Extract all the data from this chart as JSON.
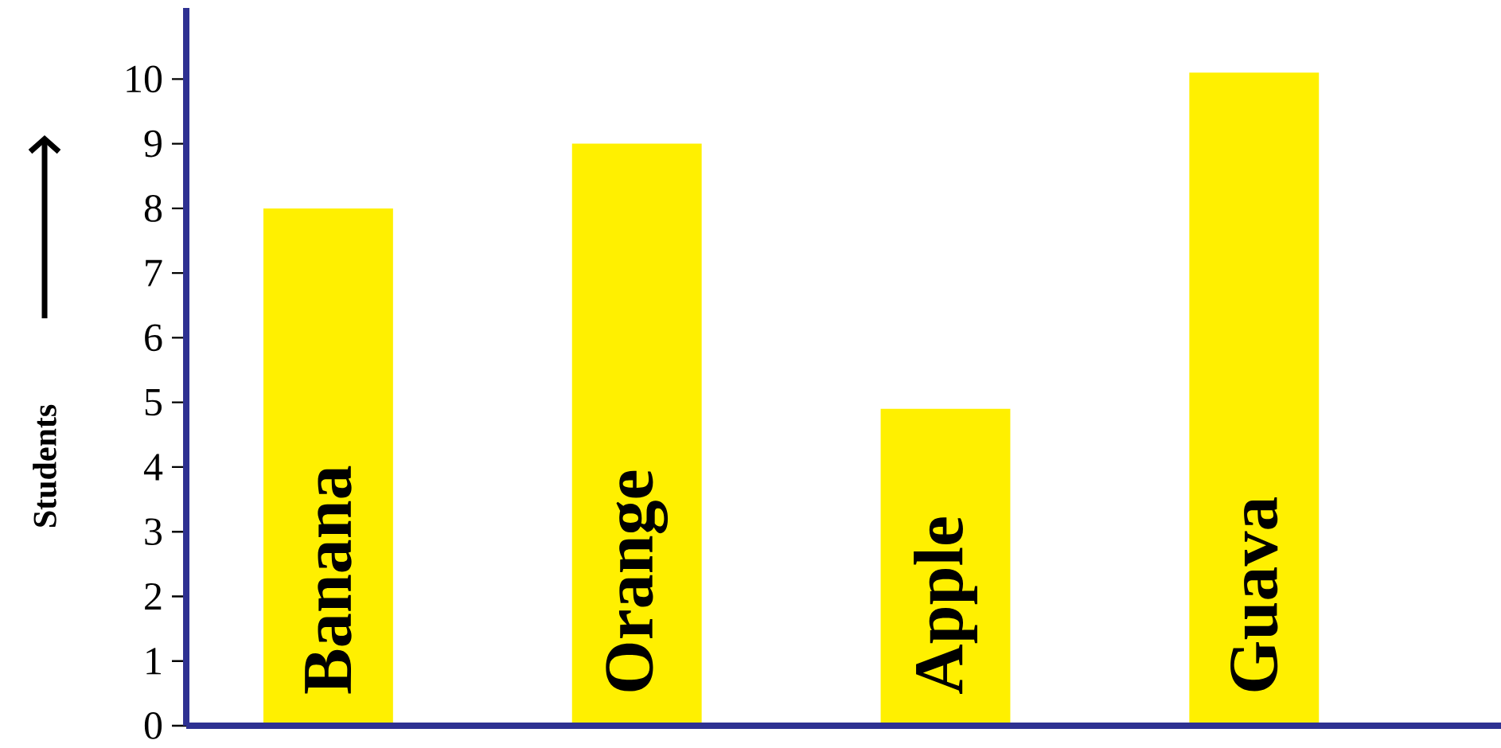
{
  "chart_data": {
    "type": "bar",
    "ylabel": "Students",
    "categories": [
      "Banana",
      "Orange",
      "Apple",
      "Guava"
    ],
    "values": [
      8,
      9,
      4.9,
      10.1
    ],
    "color": "#fff000",
    "ylim": [
      0,
      11.1
    ],
    "yticks": [
      0,
      1,
      2,
      3,
      4,
      5,
      6,
      7,
      8,
      9,
      10
    ],
    "grid": false
  }
}
